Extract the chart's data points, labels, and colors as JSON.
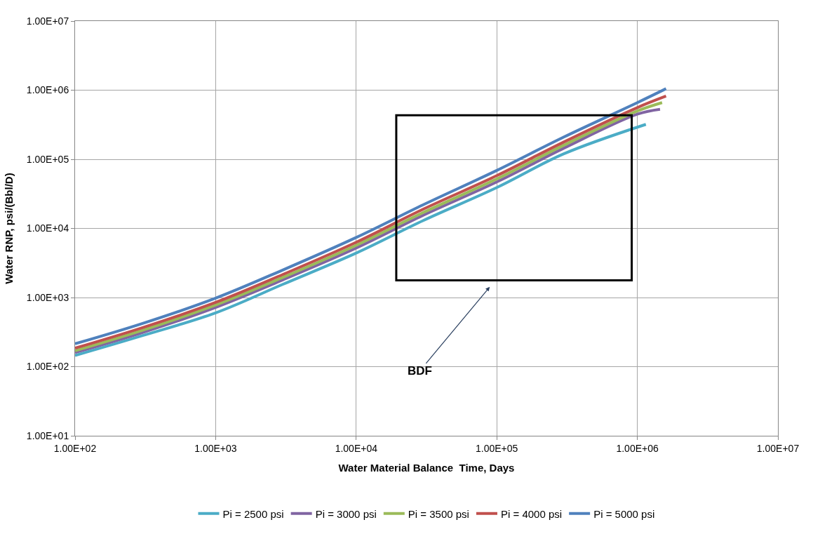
{
  "chart_data": {
    "type": "line",
    "xlabel": "Water Material Balance  Time, Days",
    "ylabel": "Water RNP, psi/(Bbl/D)",
    "log": "xy",
    "grid": true,
    "legend": "bottom",
    "marker": "none",
    "line_style": "solid",
    "xlim": [
      100,
      10000000
    ],
    "ylim": [
      10,
      10000000
    ],
    "xticks": [
      {
        "value": 100,
        "label": "1.00E+02"
      },
      {
        "value": 1000,
        "label": "1.00E+03"
      },
      {
        "value": 10000,
        "label": "1.00E+04"
      },
      {
        "value": 100000,
        "label": "1.00E+05"
      },
      {
        "value": 1000000,
        "label": "1.00E+06"
      },
      {
        "value": 10000000,
        "label": "1.00E+07"
      }
    ],
    "yticks": [
      {
        "value": 10,
        "label": "1.00E+01"
      },
      {
        "value": 100,
        "label": "1.00E+02"
      },
      {
        "value": 1000,
        "label": "1.00E+03"
      },
      {
        "value": 10000,
        "label": "1.00E+04"
      },
      {
        "value": 100000,
        "label": "1.00E+05"
      },
      {
        "value": 1000000,
        "label": "1.00E+06"
      },
      {
        "value": 10000000,
        "label": "1.00E+07"
      }
    ],
    "series": [
      {
        "name": "Pi = 2500 psi",
        "color": "#4bacc6",
        "x": [
          100,
          300,
          1000,
          3000,
          10000,
          30000,
          100000,
          300000,
          1150000
        ],
        "values": [
          145,
          280,
          600,
          1550,
          4400,
          13000,
          39000,
          120000,
          320000
        ]
      },
      {
        "name": "Pi = 3000 psi",
        "color": "#8064a2",
        "x": [
          100,
          300,
          1000,
          3000,
          10000,
          30000,
          100000,
          300000,
          1000000,
          1450000
        ],
        "values": [
          160,
          310,
          720,
          1800,
          5200,
          15500,
          47000,
          145000,
          450000,
          530000
        ]
      },
      {
        "name": "Pi = 3500 psi",
        "color": "#9bbb59",
        "x": [
          100,
          300,
          1000,
          3000,
          10000,
          30000,
          100000,
          300000,
          1000000,
          1500000
        ],
        "values": [
          170,
          335,
          780,
          1950,
          5700,
          17000,
          52000,
          160000,
          500000,
          660000
        ]
      },
      {
        "name": "Pi = 4000 psi",
        "color": "#c0504d",
        "x": [
          100,
          300,
          1000,
          3000,
          10000,
          30000,
          100000,
          300000,
          1000000,
          1600000
        ],
        "values": [
          185,
          365,
          850,
          2150,
          6300,
          19000,
          58000,
          178000,
          560000,
          820000
        ]
      },
      {
        "name": "Pi = 5000 psi",
        "color": "#4f81bd",
        "x": [
          100,
          300,
          1000,
          3000,
          10000,
          30000,
          100000,
          300000,
          1000000,
          1600000
        ],
        "values": [
          214,
          420,
          980,
          2500,
          7400,
          22000,
          69000,
          210000,
          660000,
          1050000
        ]
      }
    ],
    "annotations": [
      "BDF"
    ]
  }
}
